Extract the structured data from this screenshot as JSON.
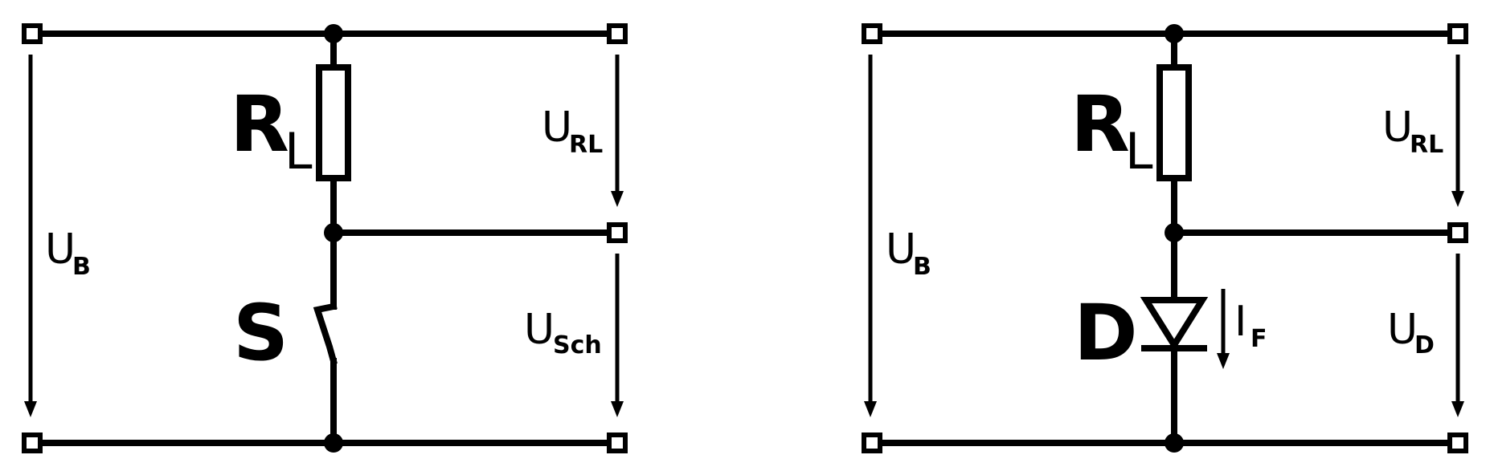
{
  "circuit_switch": {
    "resistor_label": "R",
    "resistor_sub": "L",
    "switch_label": "S",
    "supply_label": "U",
    "supply_sub": "B",
    "rl_voltage_label": "U",
    "rl_voltage_sub": "RL",
    "switch_voltage_label": "U",
    "switch_voltage_sub": "Sch"
  },
  "circuit_diode": {
    "resistor_label": "R",
    "resistor_sub": "L",
    "diode_label": "D",
    "current_label": "I",
    "current_sub": "F",
    "supply_label": "U",
    "supply_sub": "B",
    "rl_voltage_label": "U",
    "rl_voltage_sub": "RL",
    "diode_voltage_label": "U",
    "diode_voltage_sub": "D"
  }
}
